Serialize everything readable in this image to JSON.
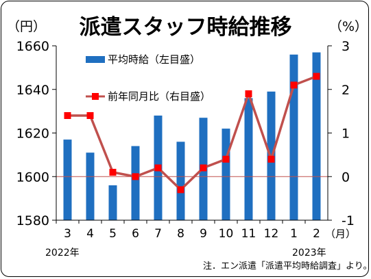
{
  "chart_data": {
    "type": "bar",
    "title": "派遣スタッフ時給推移",
    "left_unit": "（円）",
    "right_unit": "（%）",
    "month_unit": "（月）",
    "categories": [
      "3",
      "4",
      "5",
      "6",
      "7",
      "8",
      "9",
      "10",
      "11",
      "12",
      "1",
      "2"
    ],
    "year_labels": [
      "2022年",
      "2023年"
    ],
    "y_ticks": [
      "1660",
      "1640",
      "1620",
      "1600",
      "1580"
    ],
    "y2_ticks": [
      "3",
      "2",
      "1",
      "0",
      "-1"
    ],
    "ylim": [
      1580,
      1660
    ],
    "y2lim": [
      -1,
      3
    ],
    "grid": false,
    "legend_position": "top-left",
    "series": [
      {
        "name": "平均時給（左目盛）",
        "type": "bar",
        "axis": "left",
        "color": "#1f6fc0",
        "values": [
          1617,
          1611,
          1596,
          1614,
          1628,
          1616,
          1627,
          1622,
          1636,
          1639,
          1656,
          1657
        ]
      },
      {
        "name": "前年同月比（右目盛）",
        "type": "line",
        "axis": "right",
        "color": "#c0504d",
        "marker_color": "#ff0000",
        "values": [
          1.4,
          1.4,
          0.1,
          0.0,
          0.2,
          -0.3,
          0.2,
          0.4,
          1.9,
          0.4,
          2.1,
          2.3
        ]
      }
    ],
    "footnote": "注．エン派遣「派遣平均時給調査」より。"
  }
}
